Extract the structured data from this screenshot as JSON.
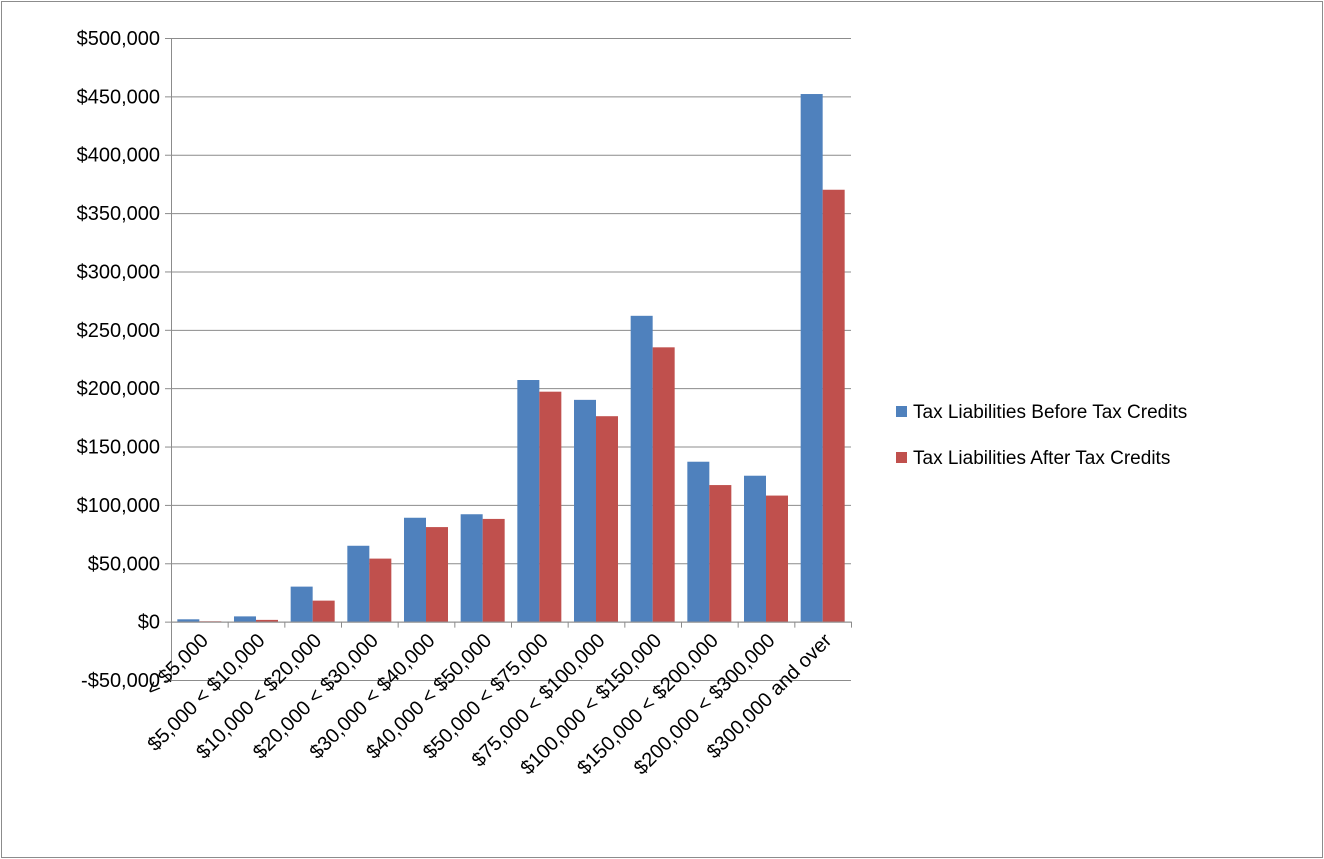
{
  "chart_data": {
    "type": "bar",
    "categories": [
      "<   $5,000",
      "$5,000 < $10,000",
      "$10,000 < $20,000",
      "$20,000 < $30,000",
      "$30,000 < $40,000",
      "$40,000 < $50,000",
      "$50,000 < $75,000",
      "$75,000 < $100,000",
      "$100,000 < $150,000",
      "$150,000 < $200,000",
      "$200,000 < $300,000",
      "$300,000 and over"
    ],
    "series": [
      {
        "name": "Tax Liabilities Before Tax Credits",
        "color": "#4F81BD",
        "values": [
          2000,
          4500,
          30000,
          65000,
          89000,
          92000,
          207000,
          190000,
          262000,
          137000,
          125000,
          452000
        ]
      },
      {
        "name": "Tax Liabilities After Tax Credits",
        "color": "#C0504D",
        "values": [
          300,
          1500,
          18000,
          54000,
          81000,
          88000,
          197000,
          176000,
          235000,
          117000,
          108000,
          370000
        ]
      }
    ],
    "ylim": [
      -50000,
      500000
    ],
    "ytick_values": [
      -50000,
      0,
      50000,
      100000,
      150000,
      200000,
      250000,
      300000,
      350000,
      400000,
      450000,
      500000
    ],
    "ytick_labels": [
      "-$50,000",
      "$0",
      "$50,000",
      "$100,000",
      "$150,000",
      "$200,000",
      "$250,000",
      "$300,000",
      "$350,000",
      "$400,000",
      "$450,000",
      "$500,000"
    ],
    "grid": true,
    "legend_position": "right"
  }
}
